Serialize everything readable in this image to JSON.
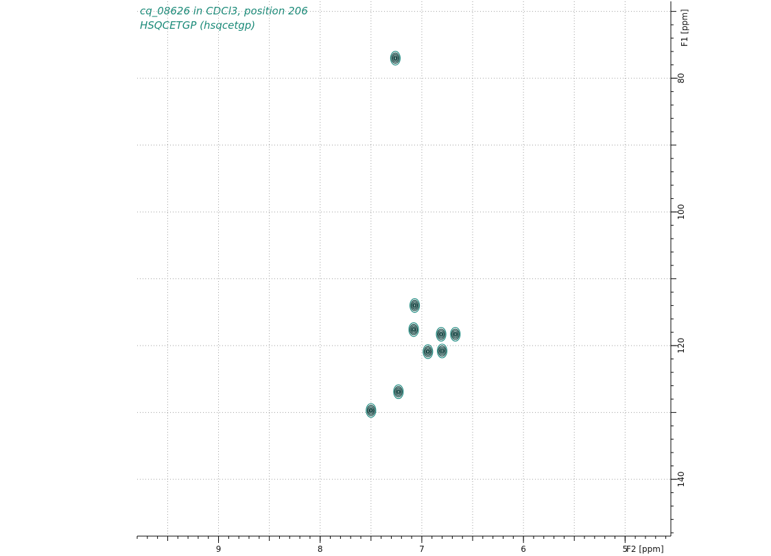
{
  "title": {
    "line1": "cq_08626 in CDCl3, position 206",
    "line2": "HSQCETGP (hsqcetgp)"
  },
  "colors": {
    "title": "#1a8a78",
    "contour_dark": "#0b3d3a",
    "contour_light": "#1e8a80",
    "grid": "#9a9a9a",
    "axis": "#000000"
  },
  "chart_data": {
    "type": "scatter",
    "subtype": "2D NMR contour plot (HSQC)",
    "x_axis": {
      "label": "F2 [ppm]",
      "range": [
        9.8,
        4.55
      ],
      "reversed": true,
      "tick_labels": [
        "9",
        "8",
        "7",
        "6",
        "5"
      ],
      "ticks": [
        9,
        8,
        7,
        6,
        5
      ]
    },
    "y_axis": {
      "label": "F1 [ppm]",
      "range": [
        68.5,
        148.5
      ],
      "reversed": true,
      "position": "right",
      "tick_labels": [
        "80",
        "100",
        "120",
        "140"
      ],
      "ticks": [
        80,
        100,
        120,
        140
      ]
    },
    "grid": true,
    "peaks": [
      {
        "x": 7.26,
        "y": 77.0
      },
      {
        "x": 7.08,
        "y": 117.6
      },
      {
        "x": 7.07,
        "y": 114.0
      },
      {
        "x": 6.94,
        "y": 120.9
      },
      {
        "x": 6.8,
        "y": 120.8
      },
      {
        "x": 6.81,
        "y": 118.3
      },
      {
        "x": 6.67,
        "y": 118.3
      },
      {
        "x": 7.23,
        "y": 126.9
      },
      {
        "x": 7.5,
        "y": 129.7
      }
    ]
  }
}
